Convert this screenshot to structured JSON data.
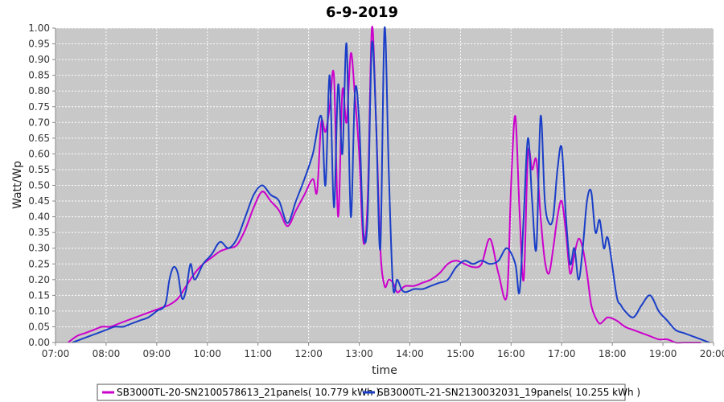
{
  "chart_data": {
    "type": "line",
    "title": "6-9-2019",
    "xlabel": "time",
    "ylabel": "Watt/Wp",
    "xlim": [
      "07:00",
      "20:00"
    ],
    "ylim": [
      0,
      1.0
    ],
    "x_ticks": [
      "07:00",
      "08:00",
      "09:00",
      "10:00",
      "11:00",
      "12:00",
      "13:00",
      "14:00",
      "15:00",
      "16:00",
      "17:00",
      "18:00",
      "19:00",
      "20:00"
    ],
    "y_ticks": [
      "0.00",
      "0.05",
      "0.10",
      "0.15",
      "0.20",
      "0.25",
      "0.30",
      "0.35",
      "0.40",
      "0.45",
      "0.50",
      "0.55",
      "0.60",
      "0.65",
      "0.70",
      "0.75",
      "0.80",
      "0.85",
      "0.90",
      "0.95",
      "1.00"
    ],
    "grid": true,
    "legend_position": "bottom",
    "colors": {
      "plot_background": "#c8c8c8",
      "grid": "#ffffff"
    },
    "series": [
      {
        "name": "SB3000TL-20-SN2100578613_21panels( 10.779 kWh )",
        "color": "#cc00cc",
        "x": [
          "07:15",
          "07:25",
          "07:35",
          "07:45",
          "07:55",
          "08:05",
          "08:15",
          "08:25",
          "08:35",
          "08:45",
          "08:55",
          "09:05",
          "09:15",
          "09:25",
          "09:35",
          "09:45",
          "09:55",
          "10:05",
          "10:15",
          "10:25",
          "10:35",
          "10:45",
          "10:55",
          "11:05",
          "11:15",
          "11:25",
          "11:35",
          "11:45",
          "11:55",
          "12:05",
          "12:10",
          "12:15",
          "12:20",
          "12:25",
          "12:30",
          "12:35",
          "12:40",
          "12:45",
          "12:50",
          "12:55",
          "13:00",
          "13:05",
          "13:10",
          "13:15",
          "13:20",
          "13:25",
          "13:30",
          "13:35",
          "13:40",
          "13:45",
          "13:50",
          "13:55",
          "14:05",
          "14:15",
          "14:25",
          "14:35",
          "14:45",
          "14:55",
          "15:05",
          "15:15",
          "15:25",
          "15:35",
          "15:45",
          "15:55",
          "16:00",
          "16:05",
          "16:10",
          "16:15",
          "16:20",
          "16:25",
          "16:30",
          "16:35",
          "16:40",
          "16:45",
          "16:50",
          "16:55",
          "17:00",
          "17:05",
          "17:10",
          "17:15",
          "17:20",
          "17:25",
          "17:30",
          "17:35",
          "17:40",
          "17:45",
          "17:50",
          "17:55",
          "18:05",
          "18:15",
          "18:25",
          "18:35",
          "18:45",
          "18:55",
          "19:05",
          "19:15",
          "19:25",
          "19:35",
          "19:45"
        ],
        "y": [
          0.0,
          0.02,
          0.03,
          0.04,
          0.05,
          0.05,
          0.06,
          0.07,
          0.08,
          0.09,
          0.1,
          0.11,
          0.12,
          0.14,
          0.18,
          0.22,
          0.25,
          0.27,
          0.29,
          0.3,
          0.31,
          0.36,
          0.43,
          0.48,
          0.45,
          0.42,
          0.37,
          0.42,
          0.47,
          0.52,
          0.48,
          0.7,
          0.67,
          0.75,
          0.85,
          0.4,
          0.8,
          0.7,
          0.92,
          0.78,
          0.6,
          0.32,
          0.45,
          1.0,
          0.7,
          0.3,
          0.18,
          0.2,
          0.19,
          0.16,
          0.17,
          0.18,
          0.18,
          0.19,
          0.2,
          0.22,
          0.25,
          0.26,
          0.25,
          0.24,
          0.25,
          0.33,
          0.22,
          0.15,
          0.5,
          0.72,
          0.42,
          0.2,
          0.6,
          0.55,
          0.58,
          0.4,
          0.26,
          0.22,
          0.3,
          0.4,
          0.45,
          0.35,
          0.22,
          0.28,
          0.33,
          0.3,
          0.22,
          0.12,
          0.08,
          0.06,
          0.07,
          0.08,
          0.07,
          0.05,
          0.04,
          0.03,
          0.02,
          0.01,
          0.01,
          0.0,
          0.0,
          0.0,
          0.0
        ]
      },
      {
        "name": "SB3000TL-21-SN2130032031_19panels( 10.255 kWh )",
        "color": "#1a3ec8",
        "x": [
          "07:20",
          "07:30",
          "07:40",
          "07:50",
          "08:00",
          "08:10",
          "08:20",
          "08:30",
          "08:40",
          "08:50",
          "09:00",
          "09:10",
          "09:15",
          "09:20",
          "09:25",
          "09:30",
          "09:35",
          "09:40",
          "09:45",
          "09:55",
          "10:05",
          "10:15",
          "10:25",
          "10:35",
          "10:45",
          "10:55",
          "11:05",
          "11:15",
          "11:25",
          "11:35",
          "11:45",
          "11:55",
          "12:05",
          "12:15",
          "12:20",
          "12:25",
          "12:30",
          "12:35",
          "12:40",
          "12:45",
          "12:50",
          "12:55",
          "13:00",
          "13:05",
          "13:10",
          "13:15",
          "13:20",
          "13:25",
          "13:30",
          "13:35",
          "13:40",
          "13:45",
          "13:50",
          "13:55",
          "14:05",
          "14:15",
          "14:25",
          "14:35",
          "14:45",
          "14:55",
          "15:05",
          "15:15",
          "15:25",
          "15:35",
          "15:45",
          "15:55",
          "16:05",
          "16:10",
          "16:15",
          "16:20",
          "16:25",
          "16:30",
          "16:35",
          "16:40",
          "16:45",
          "16:50",
          "16:55",
          "17:00",
          "17:05",
          "17:10",
          "17:15",
          "17:20",
          "17:25",
          "17:30",
          "17:35",
          "17:40",
          "17:45",
          "17:50",
          "17:55",
          "18:05",
          "18:10",
          "18:15",
          "18:25",
          "18:35",
          "18:45",
          "18:55",
          "19:05",
          "19:15",
          "19:25",
          "19:35",
          "19:45",
          "19:55"
        ],
        "y": [
          0.0,
          0.01,
          0.02,
          0.03,
          0.04,
          0.05,
          0.05,
          0.06,
          0.07,
          0.08,
          0.1,
          0.12,
          0.2,
          0.24,
          0.22,
          0.14,
          0.17,
          0.25,
          0.2,
          0.25,
          0.28,
          0.32,
          0.3,
          0.33,
          0.4,
          0.47,
          0.5,
          0.47,
          0.45,
          0.38,
          0.45,
          0.52,
          0.6,
          0.72,
          0.5,
          0.85,
          0.43,
          0.82,
          0.6,
          0.95,
          0.4,
          0.8,
          0.7,
          0.35,
          0.4,
          0.95,
          0.7,
          0.3,
          1.0,
          0.55,
          0.18,
          0.2,
          0.17,
          0.16,
          0.17,
          0.17,
          0.18,
          0.19,
          0.2,
          0.24,
          0.26,
          0.25,
          0.26,
          0.25,
          0.26,
          0.3,
          0.25,
          0.16,
          0.4,
          0.65,
          0.45,
          0.3,
          0.72,
          0.45,
          0.38,
          0.4,
          0.55,
          0.62,
          0.4,
          0.25,
          0.3,
          0.2,
          0.3,
          0.45,
          0.48,
          0.35,
          0.39,
          0.3,
          0.33,
          0.15,
          0.12,
          0.1,
          0.08,
          0.12,
          0.15,
          0.1,
          0.07,
          0.04,
          0.03,
          0.02,
          0.01,
          0.0
        ]
      }
    ]
  }
}
